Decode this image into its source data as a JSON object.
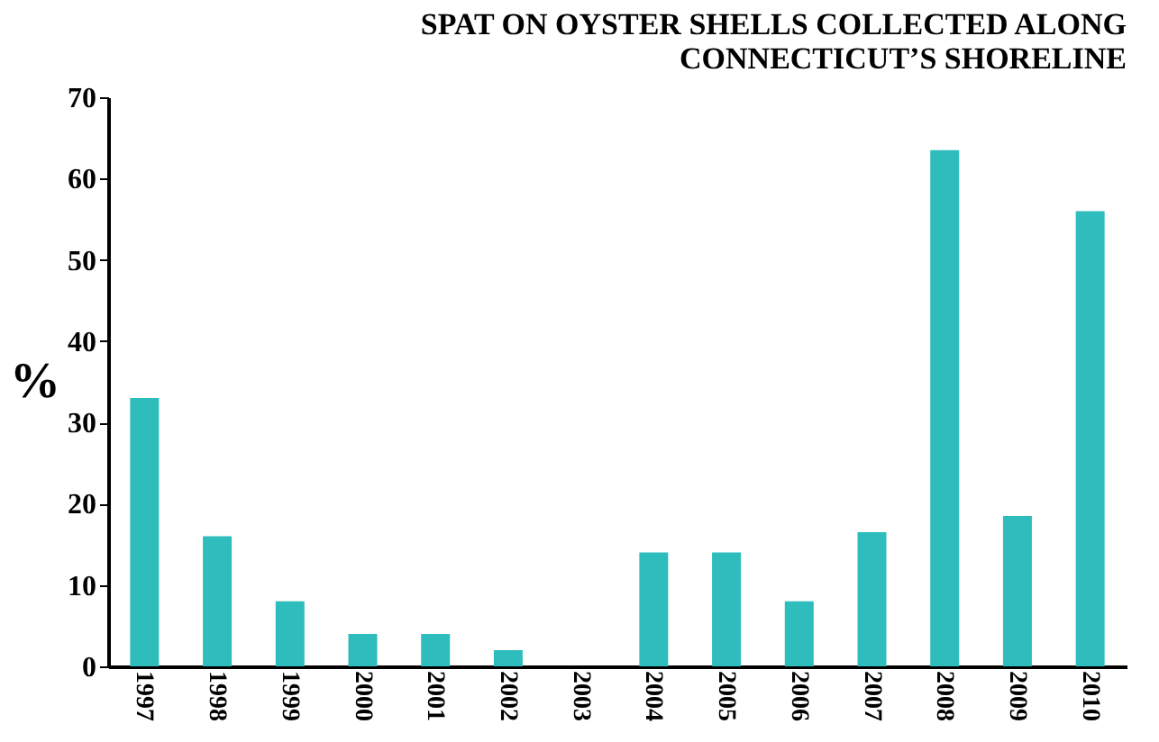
{
  "chart_data": {
    "type": "bar",
    "title": [
      "SPAT ON OYSTER SHELLS COLLECTED ALONG",
      "CONNECTICUT’S SHORELINE"
    ],
    "ylabel": "%",
    "categories": [
      "1997",
      "1998",
      "1999",
      "2000",
      "2001",
      "2002",
      "2003",
      "2004",
      "2005",
      "2006",
      "2007",
      "2008",
      "2009",
      "2010"
    ],
    "values": [
      33,
      16,
      8,
      4,
      4,
      2,
      0,
      14,
      14,
      8,
      16.5,
      63.5,
      18.5,
      56
    ],
    "color": "#2fbcbc",
    "ylim": [
      0,
      70
    ],
    "yticks": [
      0,
      10,
      20,
      30,
      40,
      50,
      60,
      70
    ],
    "grid": false
  }
}
